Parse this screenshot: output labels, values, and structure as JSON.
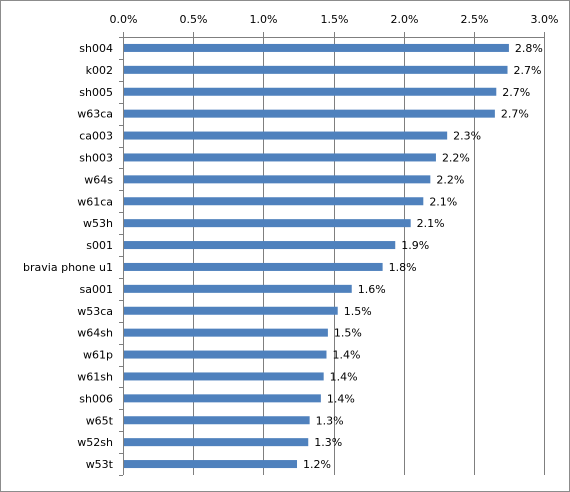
{
  "chart_data": {
    "type": "bar",
    "orientation": "horizontal",
    "categories": [
      "sh004",
      "k002",
      "sh005",
      "w63ca",
      "ca003",
      "sh003",
      "w64s",
      "w61ca",
      "w53h",
      "s001",
      "bravia phone u1",
      "sa001",
      "w53ca",
      "w64sh",
      "w61p",
      "w61sh",
      "sh006",
      "w65t",
      "w52sh",
      "w53t"
    ],
    "values": [
      2.75,
      2.74,
      2.66,
      2.65,
      2.31,
      2.23,
      2.19,
      2.14,
      2.05,
      1.94,
      1.85,
      1.63,
      1.53,
      1.46,
      1.45,
      1.43,
      1.41,
      1.33,
      1.32,
      1.24
    ],
    "data_labels": [
      "2.8%",
      "2.7%",
      "2.7%",
      "2.7%",
      "2.3%",
      "2.2%",
      "2.2%",
      "2.1%",
      "2.1%",
      "1.9%",
      "1.8%",
      "1.6%",
      "1.5%",
      "1.5%",
      "1.4%",
      "1.4%",
      "1.4%",
      "1.3%",
      "1.3%",
      "1.2%"
    ],
    "xlim": [
      0,
      3.0
    ],
    "xticks": [
      "0.0%",
      "0.5%",
      "1.0%",
      "1.5%",
      "2.0%",
      "2.5%",
      "3.0%"
    ],
    "x_axis_position": "top",
    "grid": true,
    "legend": "none",
    "colors": {
      "bar": "#4f81bd",
      "grid": "#7f7f7f",
      "axis": "#7f7f7f"
    }
  }
}
